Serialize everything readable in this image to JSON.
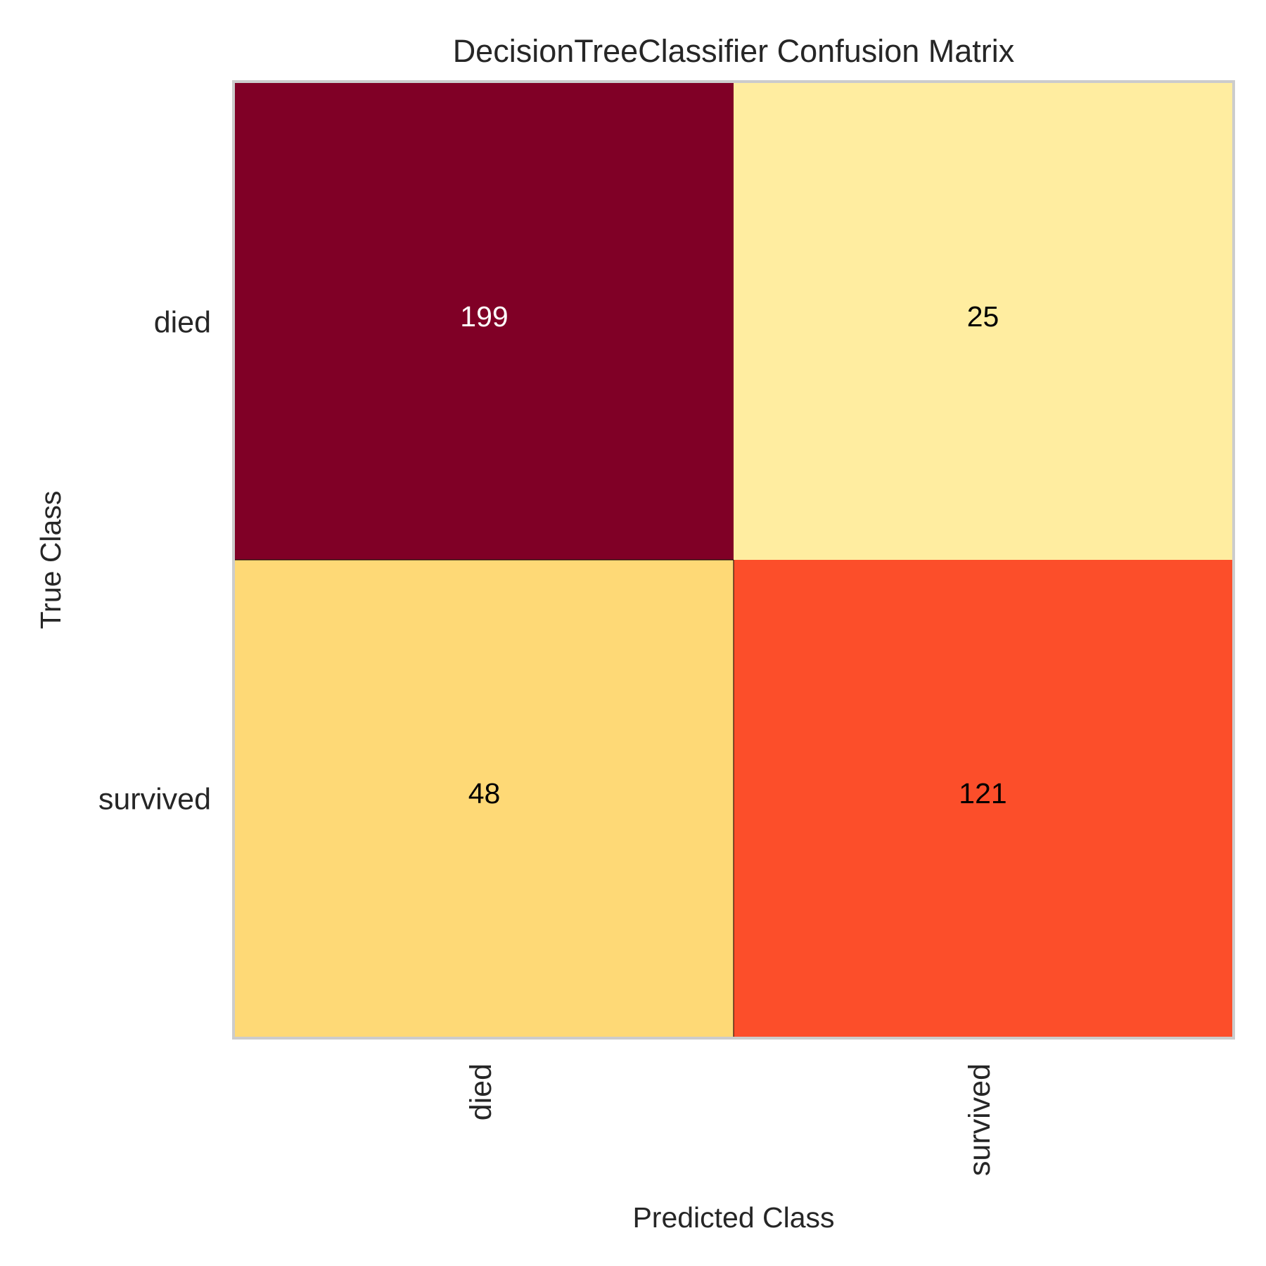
{
  "chart_data": {
    "type": "heatmap",
    "title": "DecisionTreeClassifier Confusion Matrix",
    "xlabel": "Predicted Class",
    "ylabel": "True Class",
    "x_categories": [
      "died",
      "survived"
    ],
    "y_categories": [
      "died",
      "survived"
    ],
    "values": [
      [
        199,
        25
      ],
      [
        48,
        121
      ]
    ],
    "colormap": "YlOrRd",
    "cell_colors": [
      [
        "#800026",
        "#ffeda0"
      ],
      [
        "#fed976",
        "#fc4e2a"
      ]
    ],
    "cell_text_colors": [
      [
        "#ffffff",
        "#000000"
      ],
      [
        "#000000",
        "#000000"
      ]
    ],
    "frame_color": "#cccccc",
    "cell_edge_color": "#000000",
    "grid": false
  }
}
